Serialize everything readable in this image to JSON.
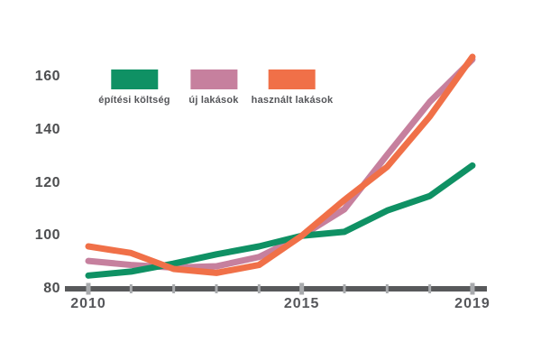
{
  "chart_data": {
    "type": "line",
    "title": "",
    "xlabel": "",
    "ylabel": "",
    "x": [
      2010,
      2011,
      2012,
      2013,
      2014,
      2015,
      2016,
      2017,
      2018,
      2019
    ],
    "xlim": [
      2010,
      2019
    ],
    "ylim": [
      80,
      170
    ],
    "y_ticks": [
      80,
      100,
      120,
      140,
      160
    ],
    "x_tick_years": [
      2010,
      2011,
      2012,
      2013,
      2014,
      2015,
      2016,
      2017,
      2018,
      2019
    ],
    "x_labeled_years": [
      2010,
      2015,
      2019
    ],
    "grid": false,
    "legend_position": "top",
    "series": [
      {
        "name": "építési költség",
        "color": "#0F9164",
        "values": [
          85,
          86.5,
          89.5,
          93,
          96,
          100,
          101.5,
          109.5,
          115,
          126.5
        ]
      },
      {
        "name": "új lakások",
        "color": "#C6809E",
        "values": [
          90.5,
          89,
          88,
          88.5,
          92,
          100,
          110,
          130.5,
          150.5,
          166.5
        ]
      },
      {
        "name": "használt lakások",
        "color": "#F07048",
        "values": [
          96,
          93.5,
          87.5,
          86,
          89,
          100,
          113.5,
          126,
          145,
          167.5
        ]
      }
    ],
    "draw_order": [
      1,
      0,
      2
    ]
  },
  "axis": {
    "color": "#58595B",
    "tick_color": "#A8AAAD",
    "label_color": "#4D4E50"
  }
}
